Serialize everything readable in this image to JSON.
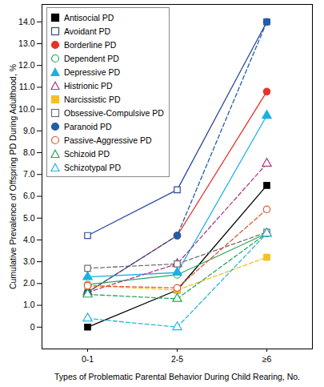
{
  "chart_data": {
    "type": "line",
    "x_label": "Types of Problematic Parental Behavior During Child Rearing, No.",
    "y_label": "Cumulative Prevalence of Offspring PD During Adulthood, %",
    "categories": [
      "0-1",
      "2-5",
      "≥6"
    ],
    "ylim": [
      -1,
      14.8
    ],
    "yticks": [
      0,
      {
        "value": 1,
        "label": "1.0"
      },
      {
        "value": 2,
        "label": "2.0"
      },
      {
        "value": 3,
        "label": "3.0"
      },
      {
        "value": 4,
        "label": "4.0"
      },
      {
        "value": 5,
        "label": "5.0"
      },
      {
        "value": 6,
        "label": "6.0"
      },
      {
        "value": 7,
        "label": "7.0"
      },
      {
        "value": 8,
        "label": "8.0"
      },
      {
        "value": 9,
        "label": "9.0"
      },
      {
        "value": 10,
        "label": "10.0"
      },
      {
        "value": 11,
        "label": "11.0"
      },
      {
        "value": 12,
        "label": "12.0"
      },
      {
        "value": 13,
        "label": "13.0"
      },
      {
        "value": 14,
        "label": "14.0"
      }
    ],
    "grid": false,
    "legend": "top-left",
    "series": [
      {
        "name": "Antisocial PD",
        "color": "#000000",
        "marker": "filled-square",
        "line_style": "solid",
        "values": [
          0,
          1.7,
          6.5
        ]
      },
      {
        "name": "Avoidant PD",
        "color": "#2c4a9e",
        "marker": "open-square",
        "line_style": "solid",
        "values": [
          4.2,
          6.3,
          14.0
        ]
      },
      {
        "name": "Borderline PD",
        "color": "#e8312a",
        "marker": "filled-circle",
        "line_style": "solid",
        "values": [
          1.6,
          4.2,
          10.8
        ]
      },
      {
        "name": "Dependent PD",
        "color": "#2aa85a",
        "marker": "open-circle",
        "line_style": "solid",
        "values": [
          1.95,
          2.4,
          4.3
        ]
      },
      {
        "name": "Depressive PD",
        "color": "#1ab0e6",
        "marker": "filled-triangle",
        "line_style": "solid",
        "values": [
          2.3,
          2.5,
          9.7
        ]
      },
      {
        "name": "Histrionic PD",
        "color": "#b03a8a",
        "marker": "open-triangle",
        "line_style": "dashed",
        "values": [
          1.6,
          2.9,
          7.5
        ]
      },
      {
        "name": "Narcissistic PD",
        "color": "#f7c020",
        "marker": "filled-square",
        "line_style": "dashed",
        "values": [
          1.9,
          1.7,
          3.2
        ]
      },
      {
        "name": "Obsessive-Compulsive PD",
        "color": "#707070",
        "marker": "open-square",
        "line_style": "dashed",
        "values": [
          2.7,
          2.9,
          4.35
        ]
      },
      {
        "name": "Paranoid PD",
        "color": "#1f5fa8",
        "marker": "filled-circle",
        "line_style": "dashed",
        "values": [
          1.6,
          4.2,
          14.0
        ]
      },
      {
        "name": "Passive-Aggressive PD",
        "color": "#e35a35",
        "marker": "open-circle",
        "line_style": "dashed",
        "values": [
          1.9,
          1.8,
          5.4
        ]
      },
      {
        "name": "Schizoid PD",
        "color": "#2aa85a",
        "marker": "open-triangle",
        "line_style": "dashed",
        "values": [
          1.5,
          1.3,
          4.3
        ]
      },
      {
        "name": "Schizotypal PD",
        "color": "#28b5e0",
        "marker": "open-triangle",
        "line_style": "dashed",
        "values": [
          0.4,
          0,
          4.3
        ]
      }
    ]
  }
}
